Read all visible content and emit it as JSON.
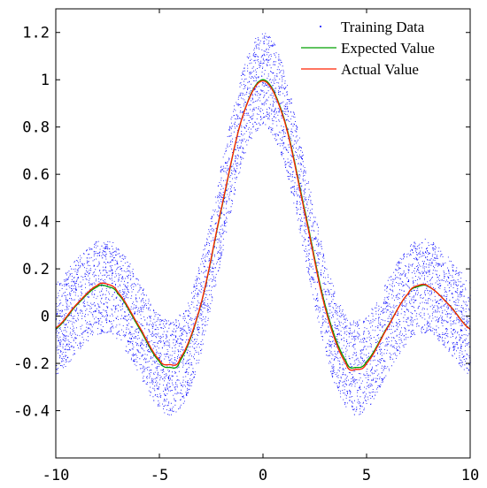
{
  "chart_data": {
    "type": "line",
    "title": "",
    "xlabel": "",
    "ylabel": "",
    "xlim": [
      -10,
      10
    ],
    "ylim": [
      -0.6,
      1.3
    ],
    "x_ticks": [
      -10,
      -5,
      0,
      5,
      10
    ],
    "x_tick_labels": [
      "-10",
      "-5",
      "0",
      "5",
      "10"
    ],
    "y_ticks": [
      -0.4,
      -0.2,
      0,
      0.2,
      0.4,
      0.6,
      0.8,
      1,
      1.2
    ],
    "y_tick_labels": [
      "-0.4",
      "-0.2",
      "0",
      "0.2",
      "0.4",
      "0.6",
      "0.8",
      "1",
      "1.2"
    ],
    "grid": false,
    "legend_position": "top-right",
    "series": [
      {
        "name": "Training Data",
        "kind": "scatter",
        "color": "#0000ff",
        "description_function": "sinc",
        "noise_range": [
          -0.2,
          0.2
        ],
        "count": 6000
      },
      {
        "name": "Expected Value",
        "kind": "line",
        "color": "#00a000",
        "x": [
          -10,
          -9,
          -8,
          -7.5,
          -7,
          -6,
          -5,
          -4.5,
          -4,
          -3,
          -2,
          -1,
          0,
          1,
          2,
          3,
          4,
          4.5,
          5,
          6,
          7,
          7.5,
          8,
          9,
          10
        ],
        "values": [
          -0.054,
          0.046,
          0.124,
          0.125,
          0.094,
          -0.047,
          -0.192,
          -0.217,
          -0.189,
          0.047,
          0.455,
          0.841,
          1.0,
          0.841,
          0.455,
          0.047,
          -0.189,
          -0.217,
          -0.192,
          -0.047,
          0.094,
          0.125,
          0.124,
          0.046,
          -0.054
        ]
      },
      {
        "name": "Actual Value",
        "kind": "line",
        "color": "#ff2000",
        "x": [
          -10,
          -9,
          -8,
          -7.5,
          -7,
          -6,
          -5,
          -4.5,
          -4,
          -3,
          -2,
          -1,
          0,
          1,
          2,
          3,
          4,
          4.5,
          5,
          6,
          7,
          7.5,
          8,
          9,
          10
        ],
        "values": [
          -0.05,
          0.05,
          0.13,
          0.135,
          0.1,
          -0.04,
          -0.185,
          -0.205,
          -0.18,
          0.05,
          0.46,
          0.84,
          0.995,
          0.835,
          0.445,
          0.035,
          -0.2,
          -0.225,
          -0.2,
          -0.05,
          0.095,
          0.13,
          0.125,
          0.045,
          -0.055
        ]
      }
    ]
  }
}
